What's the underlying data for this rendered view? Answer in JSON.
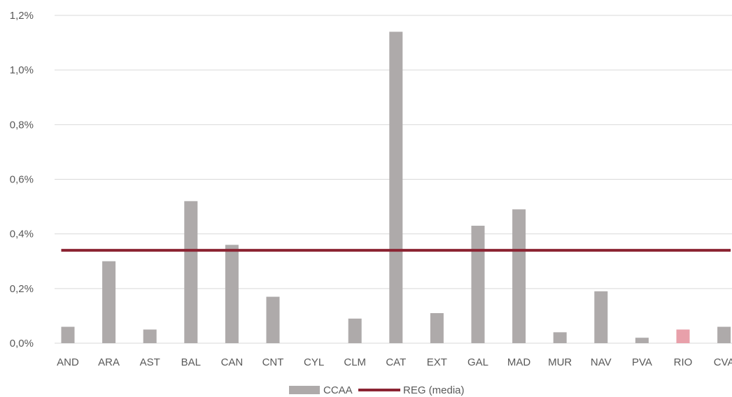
{
  "chart_data": {
    "type": "bar",
    "categories": [
      "AND",
      "ARA",
      "AST",
      "BAL",
      "CAN",
      "CNT",
      "CYL",
      "CLM",
      "CAT",
      "EXT",
      "GAL",
      "MAD",
      "MUR",
      "NAV",
      "PVA",
      "RIO",
      "CVA"
    ],
    "series": [
      {
        "name": "CCAA",
        "type": "bar",
        "color": "#aeaaaa",
        "highlight_color": "#e8a0aa",
        "highlight_category": "RIO",
        "values": [
          0.06,
          0.3,
          0.05,
          0.52,
          0.36,
          0.17,
          0.0,
          0.09,
          1.14,
          0.11,
          0.43,
          0.49,
          0.04,
          0.19,
          0.02,
          0.05,
          0.06
        ]
      },
      {
        "name": "REG (media)",
        "type": "line",
        "color": "#8b2332",
        "value": 0.34
      }
    ],
    "ylim": [
      0,
      1.2
    ],
    "yticks": [
      0,
      0.2,
      0.4,
      0.6,
      0.8,
      1.0,
      1.2
    ],
    "ytick_labels": [
      "0,0%",
      "0,2%",
      "0,4%",
      "0,6%",
      "0,8%",
      "1,0%",
      "1,2%"
    ],
    "grid": true,
    "legend_position": "bottom",
    "title": "",
    "xlabel": "",
    "ylabel": ""
  }
}
